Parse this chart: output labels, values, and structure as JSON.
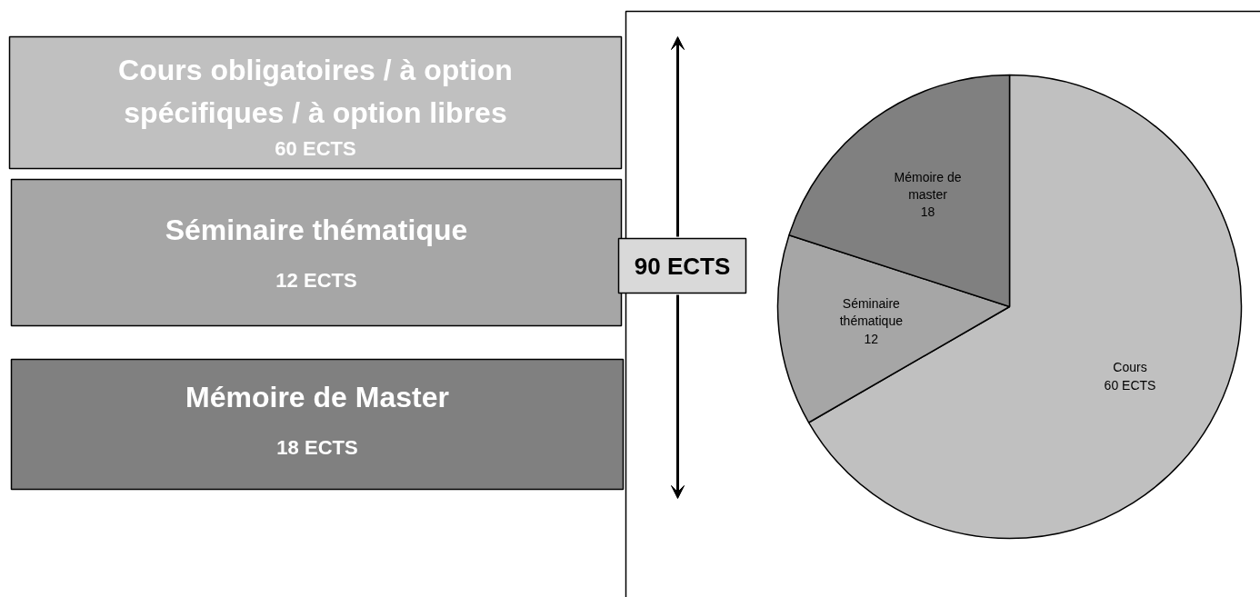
{
  "chart_data": {
    "type": "pie",
    "categories": [
      "Cours",
      "Séminaire\nthématique",
      "Mémoire de\nmaster"
    ],
    "values": [
      60,
      12,
      18
    ],
    "value_labels": [
      "60 ECTS",
      "12",
      "18"
    ],
    "colors": [
      "#c0c0c0",
      "#a6a6a6",
      "#808080"
    ],
    "annotations": [
      "Cours obligatoires / à option\nspécifiques / à option libres",
      "60 ECTS",
      "Séminaire thématique",
      "12 ECTS",
      "Mémoire de Master",
      "18 ECTS",
      "90 ECTS"
    ]
  }
}
